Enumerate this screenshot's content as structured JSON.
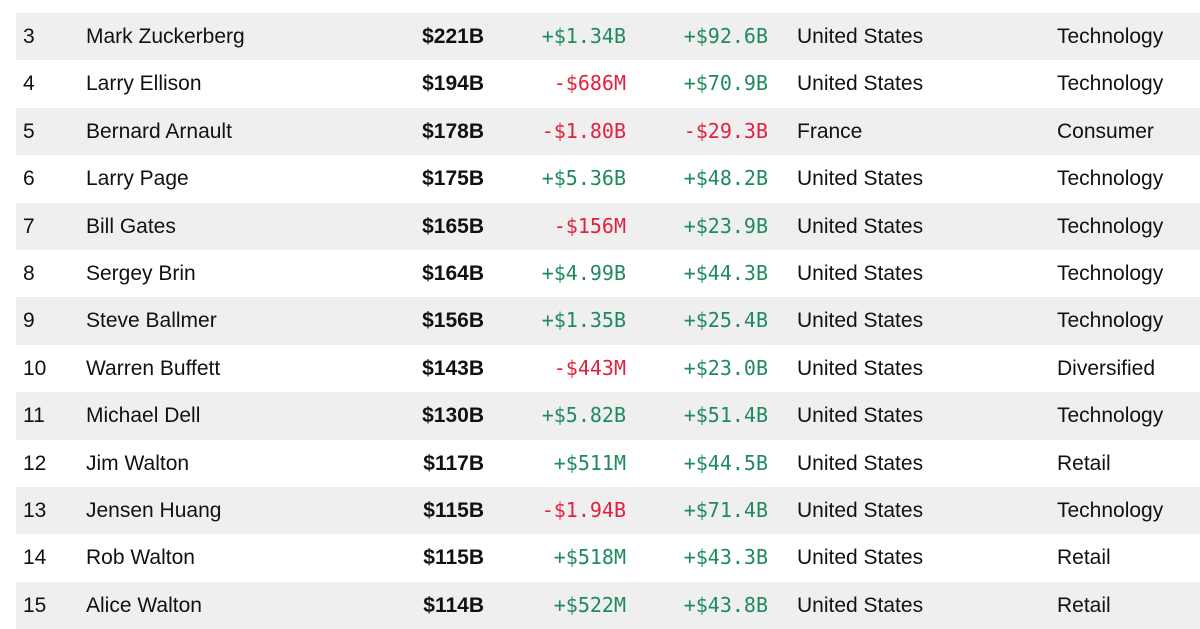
{
  "colors": {
    "positive": "#1f8a5b",
    "negative": "#e0223c",
    "row_shade": "#efefef"
  },
  "rows": [
    {
      "rank": "3",
      "name": "Mark Zuckerberg",
      "net_worth": "$221B",
      "last_change": "+$1.34B",
      "ytd_change": "+$92.6B",
      "country": "United States",
      "industry": "Technology"
    },
    {
      "rank": "4",
      "name": "Larry Ellison",
      "net_worth": "$194B",
      "last_change": "-$686M",
      "ytd_change": "+$70.9B",
      "country": "United States",
      "industry": "Technology"
    },
    {
      "rank": "5",
      "name": "Bernard Arnault",
      "net_worth": "$178B",
      "last_change": "-$1.80B",
      "ytd_change": "-$29.3B",
      "country": "France",
      "industry": "Consumer"
    },
    {
      "rank": "6",
      "name": "Larry Page",
      "net_worth": "$175B",
      "last_change": "+$5.36B",
      "ytd_change": "+$48.2B",
      "country": "United States",
      "industry": "Technology"
    },
    {
      "rank": "7",
      "name": "Bill Gates",
      "net_worth": "$165B",
      "last_change": "-$156M",
      "ytd_change": "+$23.9B",
      "country": "United States",
      "industry": "Technology"
    },
    {
      "rank": "8",
      "name": "Sergey Brin",
      "net_worth": "$164B",
      "last_change": "+$4.99B",
      "ytd_change": "+$44.3B",
      "country": "United States",
      "industry": "Technology"
    },
    {
      "rank": "9",
      "name": "Steve Ballmer",
      "net_worth": "$156B",
      "last_change": "+$1.35B",
      "ytd_change": "+$25.4B",
      "country": "United States",
      "industry": "Technology"
    },
    {
      "rank": "10",
      "name": "Warren Buffett",
      "net_worth": "$143B",
      "last_change": "-$443M",
      "ytd_change": "+$23.0B",
      "country": "United States",
      "industry": "Diversified"
    },
    {
      "rank": "11",
      "name": "Michael Dell",
      "net_worth": "$130B",
      "last_change": "+$5.82B",
      "ytd_change": "+$51.4B",
      "country": "United States",
      "industry": "Technology"
    },
    {
      "rank": "12",
      "name": "Jim Walton",
      "net_worth": "$117B",
      "last_change": "+$511M",
      "ytd_change": "+$44.5B",
      "country": "United States",
      "industry": "Retail"
    },
    {
      "rank": "13",
      "name": "Jensen Huang",
      "net_worth": "$115B",
      "last_change": "-$1.94B",
      "ytd_change": "+$71.4B",
      "country": "United States",
      "industry": "Technology"
    },
    {
      "rank": "14",
      "name": "Rob Walton",
      "net_worth": "$115B",
      "last_change": "+$518M",
      "ytd_change": "+$43.3B",
      "country": "United States",
      "industry": "Retail"
    },
    {
      "rank": "15",
      "name": "Alice Walton",
      "net_worth": "$114B",
      "last_change": "+$522M",
      "ytd_change": "+$43.8B",
      "country": "United States",
      "industry": "Retail"
    }
  ]
}
